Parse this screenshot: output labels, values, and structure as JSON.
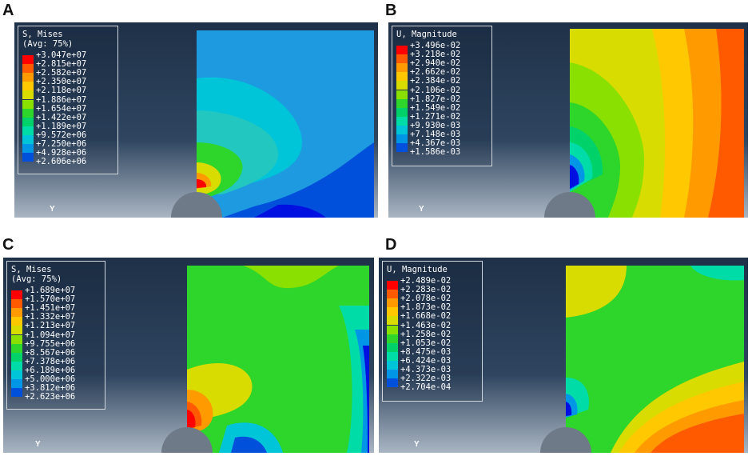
{
  "panels": [
    {
      "letter": "A",
      "legend_title": "S, Mises",
      "legend_subtitle": "(Avg: 75%)",
      "values": [
        "+3.047e+07",
        "+2.815e+07",
        "+2.582e+07",
        "+2.350e+07",
        "+2.118e+07",
        "+1.886e+07",
        "+1.654e+07",
        "+1.422e+07",
        "+1.189e+07",
        "+9.572e+06",
        "+7.250e+06",
        "+4.928e+06",
        "+2.606e+06"
      ],
      "axis_label": "Y"
    },
    {
      "letter": "B",
      "legend_title": "U, Magnitude",
      "legend_subtitle": "",
      "values": [
        "+3.496e-02",
        "+3.218e-02",
        "+2.940e-02",
        "+2.662e-02",
        "+2.384e-02",
        "+2.106e-02",
        "+1.827e-02",
        "+1.549e-02",
        "+1.271e-02",
        "+9.930e-03",
        "+7.148e-03",
        "+4.367e-03",
        "+1.586e-03"
      ],
      "axis_label": "Y"
    },
    {
      "letter": "C",
      "legend_title": "S, Mises",
      "legend_subtitle": "(Avg: 75%)",
      "values": [
        "+1.689e+07",
        "+1.570e+07",
        "+1.451e+07",
        "+1.332e+07",
        "+1.213e+07",
        "+1.094e+07",
        "+9.755e+06",
        "+8.567e+06",
        "+7.378e+06",
        "+6.189e+06",
        "+5.000e+06",
        "+3.812e+06",
        "+2.623e+06"
      ],
      "axis_label": "Y"
    },
    {
      "letter": "D",
      "legend_title": "U, Magnitude",
      "legend_subtitle": "",
      "values": [
        "+2.489e-02",
        "+2.283e-02",
        "+2.078e-02",
        "+1.873e-02",
        "+1.668e-02",
        "+1.463e-02",
        "+1.258e-02",
        "+1.053e-02",
        "+8.475e-03",
        "+6.424e-03",
        "+4.373e-03",
        "+2.322e-03",
        "+2.704e-04"
      ],
      "axis_label": "Y"
    }
  ],
  "colors": {
    "scale": [
      "#ff0000",
      "#ff5a00",
      "#ff9a00",
      "#ffc800",
      "#d8dc00",
      "#8ae000",
      "#2ed52a",
      "#00d26a",
      "#00dca8",
      "#00c4d8",
      "#0096e6",
      "#0050dc",
      "#0010e0"
    ],
    "background_top": "#1f3148",
    "background_bottom": "#9aa8b8",
    "hole": "#6e7a88"
  }
}
